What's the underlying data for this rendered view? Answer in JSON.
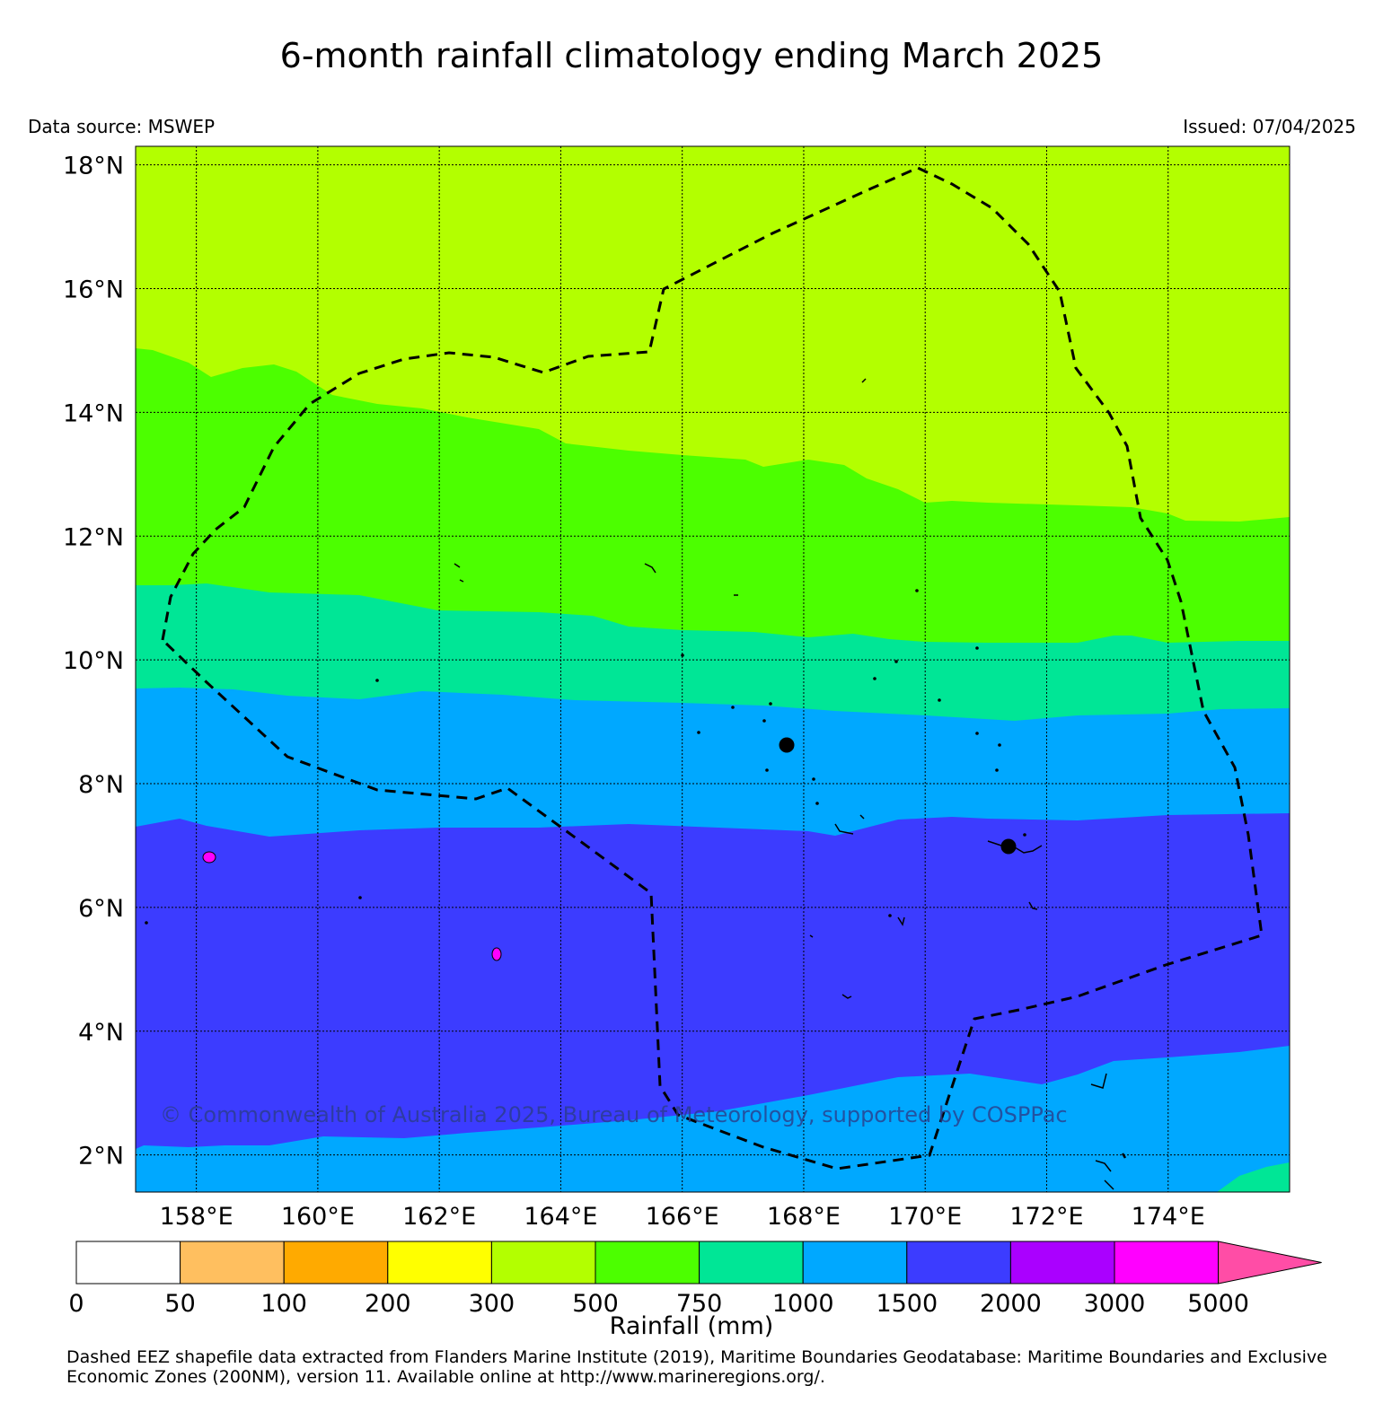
{
  "title": "6-month rainfall climatology ending March 2025",
  "data_source": "Data source: MSWEP",
  "issued": "Issued: 07/04/2025",
  "copyright": "© Commonwealth of Australia 2025, Bureau of Meteorology, supported by COSPPac",
  "footer": "Dashed EEZ shapefile data extracted from Flanders Marine Institute (2019), Maritime Boundaries Geodatabase: Maritime Boundaries and Exclusive Economic Zones (200NM), version 11. Available online at http://www.marineregions.org/.",
  "map": {
    "lon_range": [
      157.0,
      176.0
    ],
    "lat_range": [
      1.4,
      18.3
    ],
    "lon_ticks": [
      "158°E",
      "160°E",
      "162°E",
      "164°E",
      "166°E",
      "168°E",
      "170°E",
      "172°E",
      "174°E"
    ],
    "lat_ticks": [
      "2°N",
      "4°N",
      "6°N",
      "8°N",
      "10°N",
      "12°N",
      "14°N",
      "16°N",
      "18°N"
    ],
    "grid": "dotted"
  },
  "colorbar": {
    "label": "Rainfall (mm)",
    "ticks": [
      "0",
      "50",
      "100",
      "200",
      "300",
      "500",
      "750",
      "1000",
      "1500",
      "2000",
      "3000",
      "5000"
    ],
    "colors": [
      "#ffffff",
      "#ffbf5f",
      "#ffaa00",
      "#ffff00",
      "#b3ff00",
      "#4cff00",
      "#00e696",
      "#00a8ff",
      "#3c3cff",
      "#aa00ff",
      "#ff00ff"
    ],
    "extend_color": "#ff4da6"
  },
  "colors": {
    "band_300_500": "#b3ff00",
    "band_500_750": "#4cff00",
    "band_750_1000": "#00e696",
    "band_1000_1500": "#00a8ff",
    "band_1500_2000": "#3c3cff",
    "band_3000_5000": "#ff00ff"
  }
}
